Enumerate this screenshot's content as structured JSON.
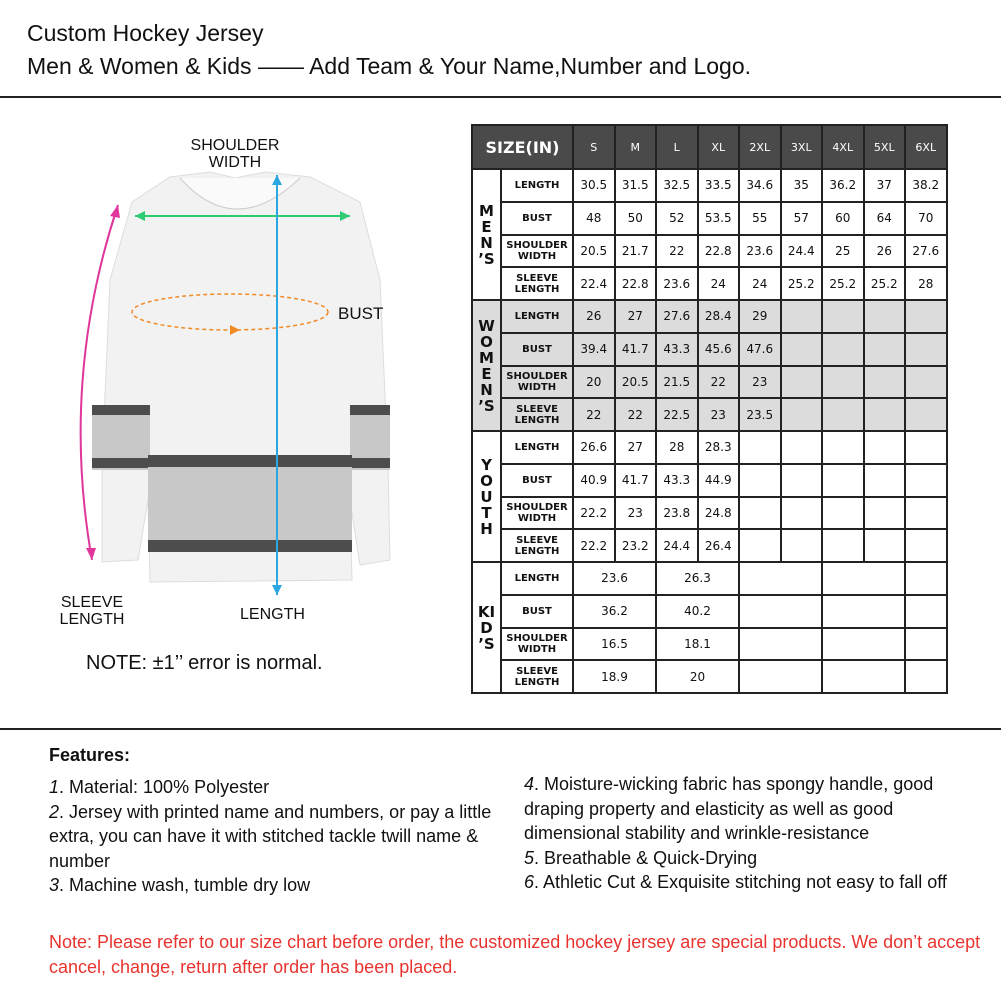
{
  "header": {
    "title": "Custom Hockey Jersey",
    "subtitle": "Men & Women & Kids —— Add Team & Your Name,Number and Logo."
  },
  "diagram": {
    "shoulder": "SHOULDER WIDTH",
    "bust": "BUST",
    "sleeve": "SLEEVE LENGTH",
    "length": "LENGTH",
    "note": "NOTE:  ±1’’ error is normal.",
    "colors": {
      "shoulder_arrow": "#2ecc71",
      "bust_arrow": "#f08a24",
      "sleeve_arrow": "#e0359a",
      "length_arrow": "#2aa7e0",
      "stripe": "#4d4d4d",
      "stripe_light": "#c8c8c8"
    }
  },
  "size_table": {
    "header": "SIZE(IN)",
    "sizes": [
      "S",
      "M",
      "L",
      "XL",
      "2XL",
      "3XL",
      "4XL",
      "5XL",
      "6XL"
    ],
    "groups": [
      {
        "name": "MEN’S",
        "rows": [
          [
            "LENGTH",
            [
              "30.5",
              "31.5",
              "32.5",
              "33.5",
              "34.6",
              "35",
              "36.2",
              "37",
              "38.2"
            ]
          ],
          [
            "BUST",
            [
              "48",
              "50",
              "52",
              "53.5",
              "55",
              "57",
              "60",
              "64",
              "70"
            ]
          ],
          [
            "SHOULDER WIDTH",
            [
              "20.5",
              "21.7",
              "22",
              "22.8",
              "23.6",
              "24.4",
              "25",
              "26",
              "27.6"
            ]
          ],
          [
            "SLEEVE LENGTH",
            [
              "22.4",
              "22.8",
              "23.6",
              "24",
              "24",
              "25.2",
              "25.2",
              "25.2",
              "28"
            ]
          ]
        ]
      },
      {
        "name": "WOMEN’S",
        "rows": [
          [
            "LENGTH",
            [
              "26",
              "27",
              "27.6",
              "28.4",
              "29"
            ]
          ],
          [
            "BUST",
            [
              "39.4",
              "41.7",
              "43.3",
              "45.6",
              "47.6"
            ]
          ],
          [
            "SHOULDER WIDTH",
            [
              "20",
              "20.5",
              "21.5",
              "22",
              "23"
            ]
          ],
          [
            "SLEEVE LENGTH",
            [
              "22",
              "22",
              "22.5",
              "23",
              "23.5"
            ]
          ]
        ]
      },
      {
        "name": "YOUTH",
        "rows": [
          [
            "LENGTH",
            [
              "26.6",
              "27",
              "28",
              "28.3"
            ]
          ],
          [
            "BUST",
            [
              "40.9",
              "41.7",
              "43.3",
              "44.9"
            ]
          ],
          [
            "SHOULDER WIDTH",
            [
              "22.2",
              "23",
              "23.8",
              "24.8"
            ]
          ],
          [
            "SLEEVE LENGTH",
            [
              "22.2",
              "23.2",
              "24.4",
              "26.4"
            ]
          ]
        ]
      },
      {
        "name": "KID’S",
        "span": 2,
        "rows": [
          [
            "LENGTH",
            [
              "23.6",
              "26.3"
            ]
          ],
          [
            "BUST",
            [
              "36.2",
              "40.2"
            ]
          ],
          [
            "SHOULDER WIDTH",
            [
              "16.5",
              "18.1"
            ]
          ],
          [
            "SLEEVE LENGTH",
            [
              "18.9",
              "20"
            ]
          ]
        ]
      }
    ]
  },
  "features": {
    "title": "Features:",
    "left": [
      [
        "1",
        ". Material: 100% Polyester"
      ],
      [
        "2",
        ". Jersey with printed name and numbers, or pay a little extra, you can have it with stitched tackle twill name & number"
      ],
      [
        "3",
        ". Machine wash, tumble dry low"
      ]
    ],
    "right": [
      [
        "4",
        ". Moisture-wicking fabric has spongy handle, good draping property and elasticity as well as good dimensional stability and wrinkle-resistance"
      ],
      [
        "5",
        ". Breathable & Quick-Drying"
      ],
      [
        "6",
        ". Athletic Cut & Exquisite stitching not easy to fall off"
      ]
    ]
  },
  "warning": "Note: Please refer to our size chart before order, the customized hockey jersey are special products. We don’t accept cancel, change, return after order has been placed.",
  "warning_color": "#e8332f"
}
